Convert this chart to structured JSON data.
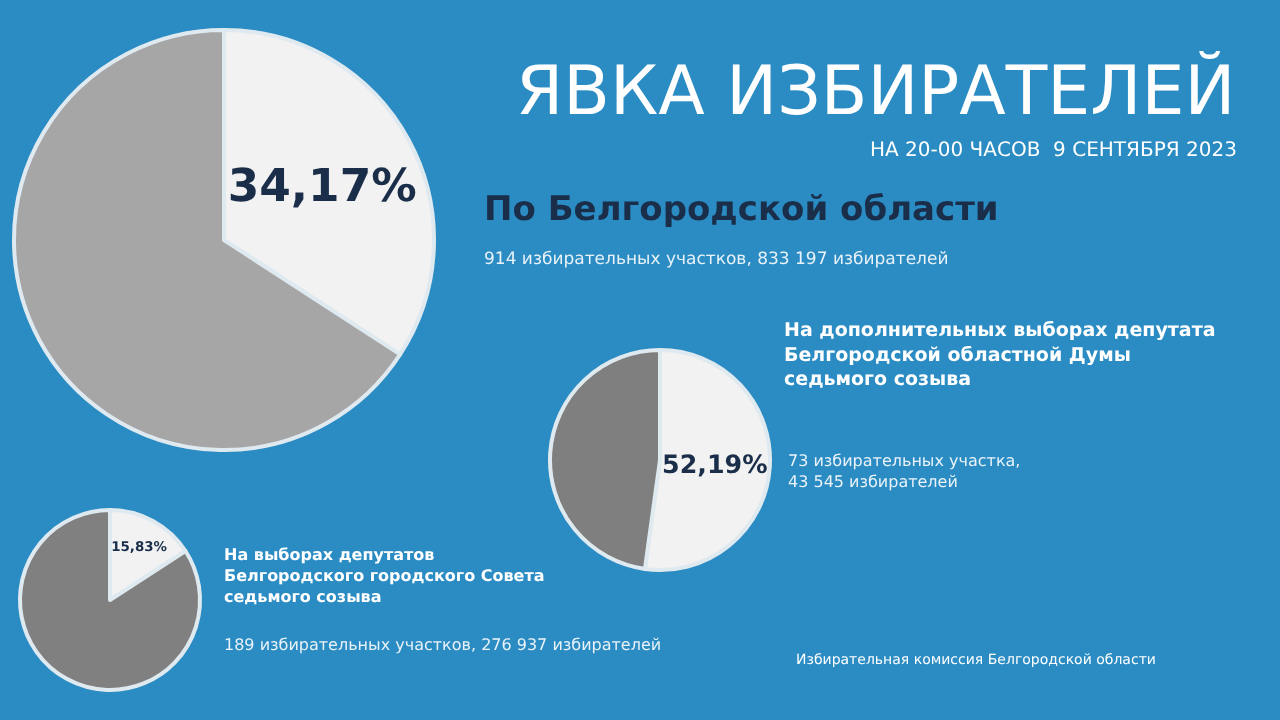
{
  "chart_data": [
    {
      "type": "pie",
      "title": "По Белгородской области",
      "subtitle": "914 избирательных участков, 833 197 избирателей",
      "categories": [
        null,
        null
      ],
      "values": [
        34.17,
        65.83
      ],
      "colors": [
        "#f2f2f2",
        "#a6a6a6"
      ],
      "value_labels": [
        "34,17%",
        null
      ],
      "annotations": [
        "ЯВКА ИЗБИРАТЕЛЕЙ",
        "НА 20-00 ЧАСОВ  9 СЕНТЯБРЯ 2023",
        "Избирательная комиссия Белгородской области"
      ]
    },
    {
      "type": "pie",
      "title": "На дополнительных выборах депутата\nБелгородской областной Думы\nседьмого созыва",
      "subtitle": "73 избирательных участка,\n43 545 избирателей",
      "categories": [
        null,
        null
      ],
      "values": [
        52.19,
        47.81
      ],
      "colors": [
        "#f2f2f2",
        "#7f7f7f"
      ],
      "value_labels": [
        "52,19%",
        null
      ]
    },
    {
      "type": "pie",
      "title": "На выборах депутатов\nБелгородского городского Совета\nседьмого созыва",
      "subtitle": "189 избирательных участков, 276 937 избирателей",
      "categories": [
        null,
        null
      ],
      "values": [
        15.83,
        84.17
      ],
      "colors": [
        "#f2f2f2",
        "#808080"
      ],
      "value_labels": [
        "15,83%",
        null
      ]
    }
  ]
}
